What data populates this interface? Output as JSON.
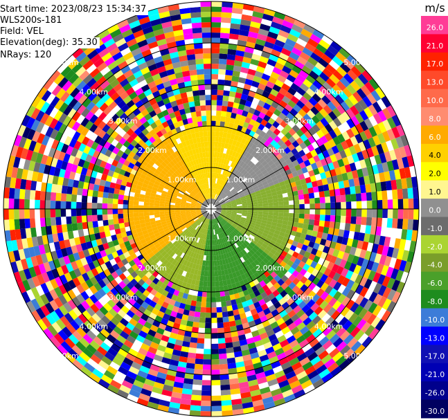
{
  "header": {
    "start_time": "Start time: 2023/08/23 15:34:37",
    "instrument": "WLS200s-181",
    "field": "Field: VEL",
    "elevation": "Elevation(deg): 35.30",
    "nrays": "NRays: 120"
  },
  "chart_data": {
    "type": "heatmap",
    "projection": "polar-ppi",
    "field": "VEL",
    "unit": "m/s",
    "elevation_deg": 35.3,
    "n_rays": 120,
    "range_rings_km": [
      1.0,
      2.0,
      3.0,
      4.0,
      5.0
    ],
    "ring_labels": [
      "1.00km",
      "2.00km",
      "3.00km",
      "4.00km",
      "5.00km"
    ],
    "max_range_km": 5.0,
    "clean_region_max_km": 2.0,
    "colorbar": {
      "label": "m/s",
      "tick_labels": [
        "26.0",
        "21.0",
        "17.0",
        "13.0",
        "10.0",
        "8.0",
        "6.0",
        "4.0",
        "2.0",
        "1.0",
        "0.0",
        "-1.0",
        "-2.0",
        "-4.0",
        "-6.0",
        "-8.0",
        "-10.0",
        "-13.0",
        "-17.0",
        "-21.0",
        "-26.0",
        "-30.0"
      ],
      "colors": [
        "#ff3c96",
        "#ff0033",
        "#ff2200",
        "#ff4a2a",
        "#ff6a4a",
        "#ff8c70",
        "#ffaa00",
        "#ffd000",
        "#ffff00",
        "#fff690",
        "#909090",
        "#6c6c6c",
        "#aad432",
        "#7a9e2a",
        "#4aa02a",
        "#1e8c1e",
        "#3c7cd8",
        "#0000ff",
        "#1010b4",
        "#0000b4",
        "#00008c",
        "#000060"
      ]
    },
    "velocity_pattern": [
      {
        "azimuth_from_deg": 230,
        "azimuth_to_deg": 330,
        "velocity_ms": 3.0,
        "color": "#ffb400"
      },
      {
        "azimuth_from_deg": 330,
        "azimuth_to_deg": 30,
        "velocity_ms": 2.5,
        "color": "#ffd800"
      },
      {
        "azimuth_from_deg": 30,
        "azimuth_to_deg": 70,
        "velocity_ms": 0.0,
        "color": "#909090"
      },
      {
        "azimuth_from_deg": 70,
        "azimuth_to_deg": 130,
        "velocity_ms": -3.0,
        "color": "#88b030"
      },
      {
        "azimuth_from_deg": 130,
        "azimuth_to_deg": 190,
        "velocity_ms": -5.0,
        "color": "#3a9a2a"
      },
      {
        "azimuth_from_deg": 190,
        "azimuth_to_deg": 230,
        "velocity_ms": -2.5,
        "color": "#98b828"
      }
    ]
  }
}
